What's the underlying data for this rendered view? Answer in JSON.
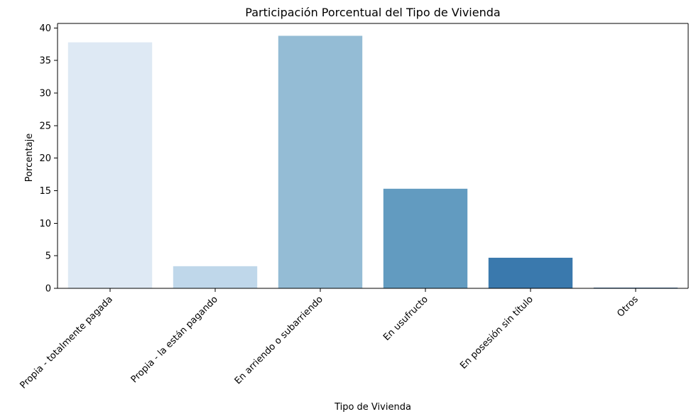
{
  "chart_data": {
    "type": "bar",
    "title": "Participación Porcentual del Tipo de Vivienda",
    "xlabel": "Tipo de Vivienda",
    "ylabel": "Porcentaje",
    "categories": [
      "Propia - totalmente pagada",
      "Propia - la están pagando",
      "En arriendo o subarriendo",
      "En usufructo",
      "En posesión sin título",
      "Otros"
    ],
    "values": [
      37.8,
      3.4,
      38.8,
      15.3,
      4.7,
      0.1
    ],
    "colors": [
      "#dee9f4",
      "#bfd7ea",
      "#94bcd5",
      "#629bc0",
      "#3a79ad",
      "#1c5a97"
    ],
    "ylim": [
      0,
      40.7
    ],
    "yticks": [
      0,
      5,
      10,
      15,
      20,
      25,
      30,
      35,
      40
    ],
    "grid": false,
    "legend": "none"
  }
}
